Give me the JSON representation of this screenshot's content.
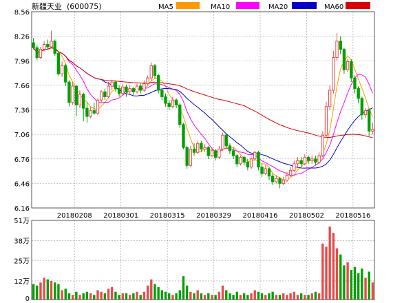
{
  "chart_data": [
    {
      "type": "candlestick",
      "stock_name": "新疆天业",
      "stock_code": "(600075)",
      "legend": [
        {
          "name": "MA5",
          "color": "#ff9900"
        },
        {
          "name": "MA10",
          "color": "#ff00ff"
        },
        {
          "name": "MA20",
          "color": "#0000cc"
        },
        {
          "name": "MA60",
          "color": "#dd0000"
        }
      ],
      "y_ticks": [
        "8.56",
        "8.26",
        "7.96",
        "7.66",
        "7.36",
        "7.06",
        "6.76",
        "6.46",
        "6.16"
      ],
      "ylim": [
        6.16,
        8.56
      ],
      "x_ticks": [
        {
          "index": 12,
          "label": "20180208"
        },
        {
          "index": 25,
          "label": "20180301"
        },
        {
          "index": 38,
          "label": "20180315"
        },
        {
          "index": 51,
          "label": "20180329"
        },
        {
          "index": 64,
          "label": "20180416"
        },
        {
          "index": 77,
          "label": "20180502"
        },
        {
          "index": 90,
          "label": "20180516"
        }
      ],
      "colors": {
        "up": "#e94a4a",
        "down": "#00a000",
        "grid": "#999999",
        "axis": "#555555"
      },
      "candles": [
        [
          8.18,
          8.12,
          8.24,
          8.1
        ],
        [
          8.12,
          8.0,
          8.15,
          7.97
        ],
        [
          8.0,
          8.1,
          8.13,
          7.98
        ],
        [
          8.1,
          8.16,
          8.2,
          8.07
        ],
        [
          8.16,
          8.13,
          8.22,
          8.1
        ],
        [
          8.13,
          8.2,
          8.33,
          8.11
        ],
        [
          8.2,
          8.05,
          8.22,
          8.02
        ],
        [
          8.05,
          7.8,
          8.07,
          7.78
        ],
        [
          7.8,
          7.9,
          7.95,
          7.76
        ],
        [
          7.9,
          7.7,
          7.92,
          7.65
        ],
        [
          7.7,
          7.45,
          7.72,
          7.4
        ],
        [
          7.45,
          7.65,
          7.7,
          7.42
        ],
        [
          7.65,
          7.42,
          7.66,
          7.28
        ],
        [
          7.42,
          7.55,
          7.6,
          7.38
        ],
        [
          7.55,
          7.38,
          7.57,
          7.22
        ],
        [
          7.38,
          7.28,
          7.45,
          7.2
        ],
        [
          7.28,
          7.35,
          7.4,
          7.26
        ],
        [
          7.35,
          7.32,
          7.45,
          7.3
        ],
        [
          7.32,
          7.48,
          7.5,
          7.3
        ],
        [
          7.48,
          7.58,
          7.6,
          7.45
        ],
        [
          7.58,
          7.52,
          7.62,
          7.48
        ],
        [
          7.52,
          7.65,
          7.7,
          7.5
        ],
        [
          7.65,
          7.7,
          7.73,
          7.6
        ],
        [
          7.7,
          7.62,
          7.72,
          7.58
        ],
        [
          7.62,
          7.56,
          7.66,
          7.52
        ],
        [
          7.56,
          7.64,
          7.68,
          7.54
        ],
        [
          7.64,
          7.58,
          7.67,
          7.52
        ],
        [
          7.58,
          7.62,
          7.66,
          7.55
        ],
        [
          7.62,
          7.58,
          7.64,
          7.54
        ],
        [
          7.58,
          7.65,
          7.68,
          7.56
        ],
        [
          7.65,
          7.6,
          7.69,
          7.56
        ],
        [
          7.6,
          7.68,
          7.72,
          7.58
        ],
        [
          7.68,
          7.75,
          7.78,
          7.66
        ],
        [
          7.75,
          7.9,
          7.94,
          7.72
        ],
        [
          7.9,
          7.78,
          7.92,
          7.74
        ],
        [
          7.78,
          7.6,
          7.8,
          7.56
        ],
        [
          7.6,
          7.52,
          7.62,
          7.48
        ],
        [
          7.52,
          7.44,
          7.56,
          7.4
        ],
        [
          7.44,
          7.4,
          7.48,
          7.36
        ],
        [
          7.4,
          7.48,
          7.52,
          7.38
        ],
        [
          7.48,
          7.42,
          7.5,
          7.38
        ],
        [
          7.42,
          7.18,
          7.44,
          7.14
        ],
        [
          7.18,
          6.9,
          7.2,
          6.88
        ],
        [
          6.9,
          6.68,
          6.92,
          6.64
        ],
        [
          6.68,
          6.88,
          6.92,
          6.66
        ],
        [
          6.88,
          6.84,
          6.95,
          6.8
        ],
        [
          6.84,
          6.95,
          6.98,
          6.82
        ],
        [
          6.95,
          6.88,
          6.98,
          6.84
        ],
        [
          6.88,
          6.9,
          6.94,
          6.84
        ],
        [
          6.9,
          6.8,
          6.92,
          6.76
        ],
        [
          6.8,
          6.86,
          6.9,
          6.78
        ],
        [
          6.86,
          6.78,
          6.88,
          6.74
        ],
        [
          6.78,
          6.88,
          6.92,
          6.76
        ],
        [
          6.88,
          7.05,
          7.08,
          6.86
        ],
        [
          7.05,
          6.92,
          7.06,
          6.88
        ],
        [
          6.92,
          6.86,
          6.95,
          6.82
        ],
        [
          6.86,
          6.8,
          6.9,
          6.76
        ],
        [
          6.8,
          6.7,
          6.82,
          6.66
        ],
        [
          6.7,
          6.78,
          6.8,
          6.68
        ],
        [
          6.78,
          6.72,
          6.8,
          6.68
        ],
        [
          6.72,
          6.66,
          6.76,
          6.62
        ],
        [
          6.66,
          6.76,
          6.78,
          6.64
        ],
        [
          6.76,
          6.84,
          6.86,
          6.74
        ],
        [
          6.84,
          6.66,
          6.86,
          6.62
        ],
        [
          6.66,
          6.58,
          6.7,
          6.54
        ],
        [
          6.58,
          6.64,
          6.68,
          6.56
        ],
        [
          6.64,
          6.55,
          6.66,
          6.5
        ],
        [
          6.55,
          6.48,
          6.58,
          6.44
        ],
        [
          6.48,
          6.52,
          6.56,
          6.46
        ],
        [
          6.52,
          6.46,
          6.54,
          6.4
        ],
        [
          6.46,
          6.5,
          6.54,
          6.44
        ],
        [
          6.5,
          6.56,
          6.6,
          6.48
        ],
        [
          6.56,
          6.62,
          6.66,
          6.54
        ],
        [
          6.62,
          6.7,
          6.74,
          6.6
        ],
        [
          6.7,
          6.74,
          6.78,
          6.66
        ],
        [
          6.74,
          6.7,
          6.78,
          6.66
        ],
        [
          6.7,
          6.78,
          6.82,
          6.68
        ],
        [
          6.78,
          6.74,
          6.8,
          6.7
        ],
        [
          6.74,
          6.76,
          6.8,
          6.7
        ],
        [
          6.76,
          6.72,
          6.8,
          6.68
        ],
        [
          6.72,
          6.8,
          6.84,
          6.7
        ],
        [
          6.8,
          7.05,
          7.1,
          6.78
        ],
        [
          7.05,
          7.4,
          7.46,
          7.02
        ],
        [
          7.4,
          7.6,
          7.66,
          7.36
        ],
        [
          7.6,
          8.0,
          8.08,
          7.56
        ],
        [
          8.0,
          8.2,
          8.3,
          7.96
        ],
        [
          8.2,
          8.1,
          8.26,
          8.04
        ],
        [
          8.1,
          7.85,
          8.12,
          7.8
        ],
        [
          7.85,
          7.95,
          7.98,
          7.82
        ],
        [
          7.95,
          7.75,
          7.98,
          7.7
        ],
        [
          7.75,
          7.62,
          7.78,
          7.56
        ],
        [
          7.62,
          7.5,
          7.65,
          7.44
        ],
        [
          7.5,
          7.3,
          7.52,
          7.24
        ],
        [
          7.3,
          7.35,
          7.38,
          7.26
        ],
        [
          7.35,
          7.1,
          7.38,
          7.04
        ],
        [
          7.1,
          7.12,
          7.2,
          7.06
        ]
      ]
    },
    {
      "type": "bar",
      "y_ticks": [
        "51万",
        "38万",
        "25万",
        "12万",
        "0"
      ],
      "ylim": [
        0,
        51
      ],
      "unit": "万",
      "volumes": [
        10,
        9,
        11,
        14,
        13,
        12,
        11,
        10,
        6,
        7,
        4,
        3,
        5,
        3,
        4,
        5,
        4,
        3,
        6,
        5,
        4,
        7,
        8,
        5,
        3,
        4,
        4,
        3,
        4,
        5,
        3,
        5,
        9,
        13,
        10,
        8,
        6,
        5,
        4,
        3,
        4,
        6,
        15,
        9,
        5,
        4,
        6,
        4,
        3,
        4,
        3,
        3,
        5,
        9,
        6,
        4,
        3,
        5,
        3,
        4,
        3,
        4,
        6,
        5,
        4,
        3,
        4,
        5,
        3,
        3,
        4,
        3,
        4,
        5,
        3,
        4,
        3,
        3,
        4,
        5,
        4,
        36,
        34,
        47,
        43,
        33,
        29,
        22,
        24,
        19,
        21,
        17,
        20,
        14,
        18,
        11
      ]
    }
  ]
}
